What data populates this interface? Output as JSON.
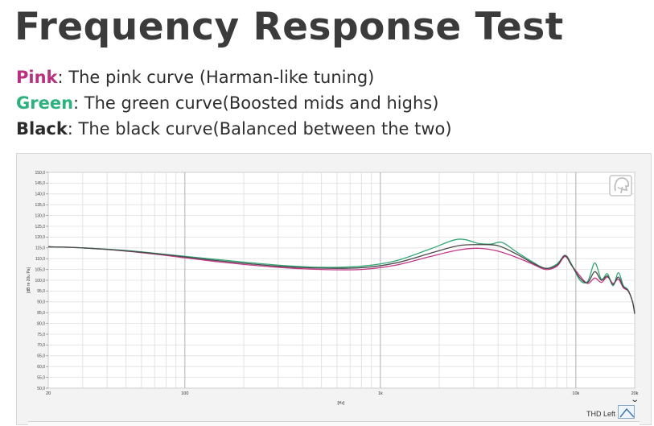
{
  "page": {
    "title": "Frequency Response Test",
    "legend": [
      {
        "key": "Pink",
        "text": ": The pink curve (Harman-like tuning)",
        "color": "#b8307f"
      },
      {
        "key": "Green",
        "text": ": The green curve(Boosted mids and highs)",
        "color": "#2db27d"
      },
      {
        "key": "Black",
        "text": ": The black curve(Balanced between the two)",
        "color": "#2b2b2b"
      }
    ]
  },
  "chart_data": {
    "type": "line",
    "xlabel": "[Hz]",
    "ylabel": "[dB re 20u Pa]",
    "xscale": "log",
    "xlim": [
      20,
      20000
    ],
    "ylim": [
      50,
      150
    ],
    "x_ticks": [
      {
        "value": 20,
        "label": "20"
      },
      {
        "value": 100,
        "label": "100"
      },
      {
        "value": 1000,
        "label": "1k"
      },
      {
        "value": 10000,
        "label": "10k"
      },
      {
        "value": 20000,
        "label": "20k"
      }
    ],
    "y_ticks": [
      "150,0",
      "145,0",
      "140,0",
      "135,0",
      "130,0",
      "125,0",
      "120,0",
      "115,0",
      "110,0",
      "105,0",
      "100,0",
      "95,0",
      "90,0",
      "85,0",
      "80,0",
      "75,0",
      "70,0",
      "65,0",
      "60,0",
      "55,0",
      "50,0"
    ],
    "grid": true,
    "series": [
      {
        "name": "Pink",
        "color": "#c2398a",
        "x": [
          20,
          30,
          50,
          80,
          150,
          300,
          500,
          800,
          1200,
          1800,
          2500,
          3200,
          4000,
          5000,
          6000,
          7000,
          8000,
          8800,
          9500,
          10500,
          11500,
          12500,
          13500,
          14500,
          15500,
          16500,
          17500,
          18500,
          19500,
          20000
        ],
        "y": [
          115.5,
          115,
          113.5,
          111.5,
          108.5,
          106,
          105,
          105,
          107,
          111,
          114,
          114.8,
          113.5,
          110.5,
          107.5,
          105,
          106.5,
          111,
          107,
          102,
          98.5,
          101,
          99,
          101.5,
          98.5,
          100.5,
          96.5,
          95,
          90,
          84.5
        ]
      },
      {
        "name": "Green",
        "color": "#35a877",
        "x": [
          20,
          30,
          50,
          80,
          150,
          300,
          500,
          800,
          1200,
          1800,
          2500,
          3200,
          3700,
          4200,
          5000,
          6000,
          7000,
          8000,
          8800,
          9500,
          10500,
          11500,
          12500,
          13500,
          14500,
          15500,
          16500,
          17500,
          18500,
          19500,
          20000
        ],
        "y": [
          115.5,
          115,
          113.8,
          112,
          109.5,
          107,
          106,
          106.5,
          109,
          114.5,
          119,
          117,
          116.8,
          117.5,
          113,
          108.5,
          105.5,
          107.5,
          111.5,
          107.5,
          100,
          99.5,
          108,
          100.5,
          103,
          97.5,
          103.5,
          97.5,
          95.5,
          90,
          84.5
        ]
      },
      {
        "name": "Black",
        "color": "#4a4a4a",
        "x": [
          20,
          30,
          50,
          80,
          150,
          300,
          500,
          800,
          1200,
          1800,
          2500,
          3200,
          4000,
          5000,
          6000,
          7000,
          8000,
          8800,
          9500,
          10500,
          11500,
          12500,
          13500,
          14500,
          15500,
          16500,
          17500,
          18500,
          19500,
          20000
        ],
        "y": [
          115.5,
          115,
          113.6,
          111.8,
          109,
          106.5,
          105.6,
          105.8,
          108,
          112.5,
          116,
          116.5,
          116,
          112,
          108,
          105.5,
          107,
          111.5,
          107,
          101,
          99,
          104,
          100,
          102,
          98,
          101.5,
          97,
          95.3,
          90,
          84.5
        ]
      }
    ],
    "thd_label": "THD Left"
  }
}
